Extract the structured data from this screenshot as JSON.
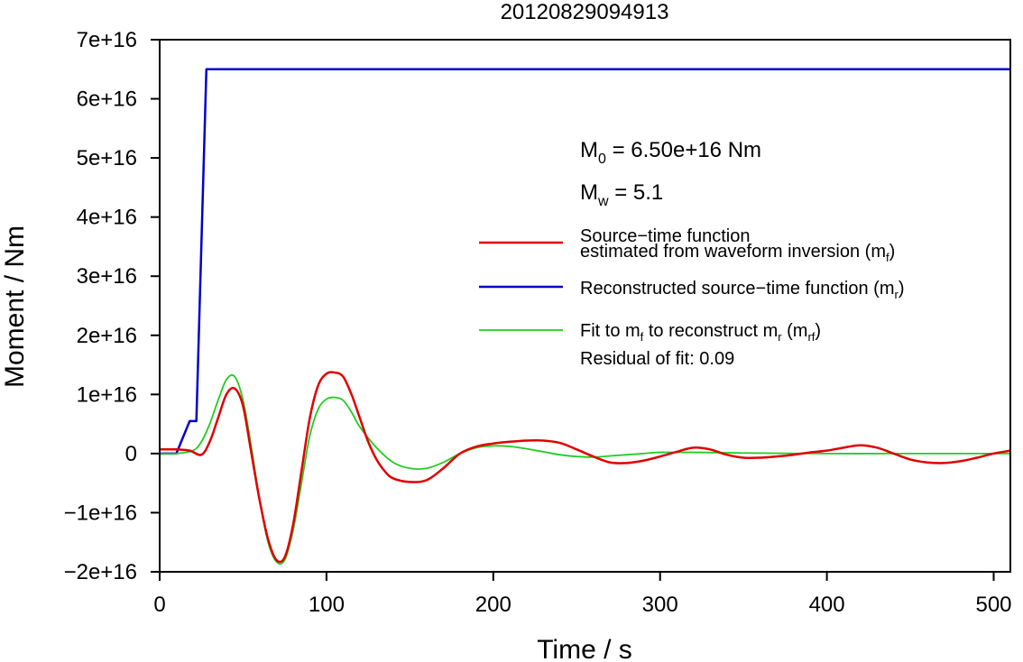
{
  "chart_data": {
    "type": "line",
    "title": "20120829094913",
    "xlabel": "Time / s",
    "ylabel": "Moment / Nm",
    "xlim": [
      0,
      510
    ],
    "ylim": [
      -2e+16,
      7e+16
    ],
    "x_ticks": [
      0,
      100,
      200,
      300,
      400,
      500
    ],
    "x_tick_labels": [
      "0",
      "100",
      "200",
      "300",
      "400",
      "500"
    ],
    "y_ticks": [
      -2e+16,
      -1e+16,
      0,
      1e+16,
      2e+16,
      3e+16,
      4e+16,
      5e+16,
      6e+16,
      7e+16
    ],
    "y_tick_labels": [
      "−2e+16",
      "−1e+16",
      "0",
      "1e+16",
      "2e+16",
      "3e+16",
      "4e+16",
      "5e+16",
      "6e+16",
      "7e+16"
    ],
    "grid": false,
    "legend_position": "right",
    "annotations": {
      "m0_prefix": "M",
      "m0_sub": "0",
      "m0_value": " = 6.50e+16 Nm",
      "mw_prefix": "M",
      "mw_sub": "w",
      "mw_value": " = 5.1",
      "residual": "Residual of fit: 0.09"
    },
    "legend": {
      "stf_line1": "Source−time function",
      "stf_line2_pre": "estimated from waveform inversion (m",
      "stf_line2_sub": "f",
      "stf_line2_post": ")",
      "rec_pre": "Reconstructed source−time function (m",
      "rec_sub": "r",
      "rec_post": ")",
      "fit_pre": "Fit to m",
      "fit_sub1": "f",
      "fit_mid": " to reconstruct m",
      "fit_sub2": "r",
      "fit_mid2": " (m",
      "fit_sub3": "rf",
      "fit_post": ")"
    },
    "series": [
      {
        "key": "mf",
        "color": "#e00000",
        "x": [
          0,
          10,
          18,
          25,
          30,
          35,
          40,
          45,
          50,
          55,
          60,
          65,
          70,
          75,
          80,
          85,
          90,
          95,
          100,
          105,
          110,
          115,
          120,
          125,
          130,
          135,
          140,
          150,
          160,
          170,
          180,
          190,
          200,
          210,
          220,
          230,
          240,
          250,
          260,
          270,
          280,
          290,
          300,
          310,
          320,
          330,
          340,
          350,
          360,
          370,
          380,
          390,
          400,
          410,
          420,
          430,
          440,
          450,
          460,
          470,
          480,
          490,
          500,
          510
        ],
        "y": [
          700000000000000.0,
          700000000000000.0,
          500000000000000.0,
          -200000000000000.0,
          2000000000000000.0,
          6000000000000000.0,
          1e+16,
          1.1e+16,
          8000000000000000.0,
          0.0,
          -8000000000000000.0,
          -1.45e+16,
          -1.8e+16,
          -1.75e+16,
          -1.2e+16,
          -3000000000000000.0,
          6000000000000000.0,
          1.15e+16,
          1.35e+16,
          1.37e+16,
          1.3e+16,
          1e+16,
          6000000000000000.0,
          2000000000000000.0,
          -1000000000000000.0,
          -3000000000000000.0,
          -4200000000000000.0,
          -4800000000000000.0,
          -4500000000000000.0,
          -2500000000000000.0,
          0.0,
          1200000000000000.0,
          1700000000000000.0,
          2000000000000000.0,
          2200000000000000.0,
          2200000000000000.0,
          1800000000000000.0,
          700000000000000.0,
          -500000000000000.0,
          -1500000000000000.0,
          -1600000000000000.0,
          -1200000000000000.0,
          -500000000000000.0,
          300000000000000.0,
          1000000000000000.0,
          700000000000000.0,
          -200000000000000.0,
          -700000000000000.0,
          -700000000000000.0,
          -500000000000000.0,
          -200000000000000.0,
          200000000000000.0,
          500000000000000.0,
          1000000000000000.0,
          1400000000000000.0,
          1000000000000000.0,
          0.0,
          -1000000000000000.0,
          -1500000000000000.0,
          -1600000000000000.0,
          -1300000000000000.0,
          -700000000000000.0,
          0.0,
          500000000000000.0
        ]
      },
      {
        "key": "mr",
        "color": "#0000cc",
        "x": [
          0,
          10,
          18,
          18,
          22,
          22,
          28,
          28,
          510
        ],
        "y": [
          0,
          0,
          5500000000000000.0,
          5500000000000000.0,
          5500000000000000.0,
          5500000000000000.0,
          6.5e+16,
          6.5e+16,
          6.5e+16
        ]
      },
      {
        "key": "mrf",
        "color": "#22cc22",
        "x": [
          0,
          10,
          20,
          25,
          30,
          35,
          40,
          45,
          50,
          55,
          60,
          65,
          70,
          75,
          80,
          85,
          90,
          95,
          100,
          105,
          110,
          115,
          120,
          130,
          140,
          150,
          160,
          170,
          180,
          190,
          200,
          210,
          220,
          230,
          240,
          250,
          260,
          270,
          280,
          290,
          300,
          320,
          350,
          400,
          450,
          500,
          510
        ],
        "y": [
          0,
          0,
          500000000000000.0,
          2000000000000000.0,
          5000000000000000.0,
          9000000000000000.0,
          1.25e+16,
          1.3e+16,
          9000000000000000.0,
          1000000000000000.0,
          -8000000000000000.0,
          -1.5e+16,
          -1.83e+16,
          -1.8e+16,
          -1.3e+16,
          -5000000000000000.0,
          3000000000000000.0,
          7500000000000000.0,
          9200000000000000.0,
          9500000000000000.0,
          9000000000000000.0,
          7000000000000000.0,
          4500000000000000.0,
          1000000000000000.0,
          -1500000000000000.0,
          -2500000000000000.0,
          -2500000000000000.0,
          -1500000000000000.0,
          0.0,
          1000000000000000.0,
          1300000000000000.0,
          1200000000000000.0,
          800000000000000.0,
          300000000000000.0,
          -200000000000000.0,
          -500000000000000.0,
          -600000000000000.0,
          -400000000000000.0,
          -200000000000000.0,
          0.0,
          200000000000000.0,
          200000000000000.0,
          100000000000000.0,
          0.0,
          0.0,
          0.0,
          0.0
        ]
      }
    ]
  }
}
